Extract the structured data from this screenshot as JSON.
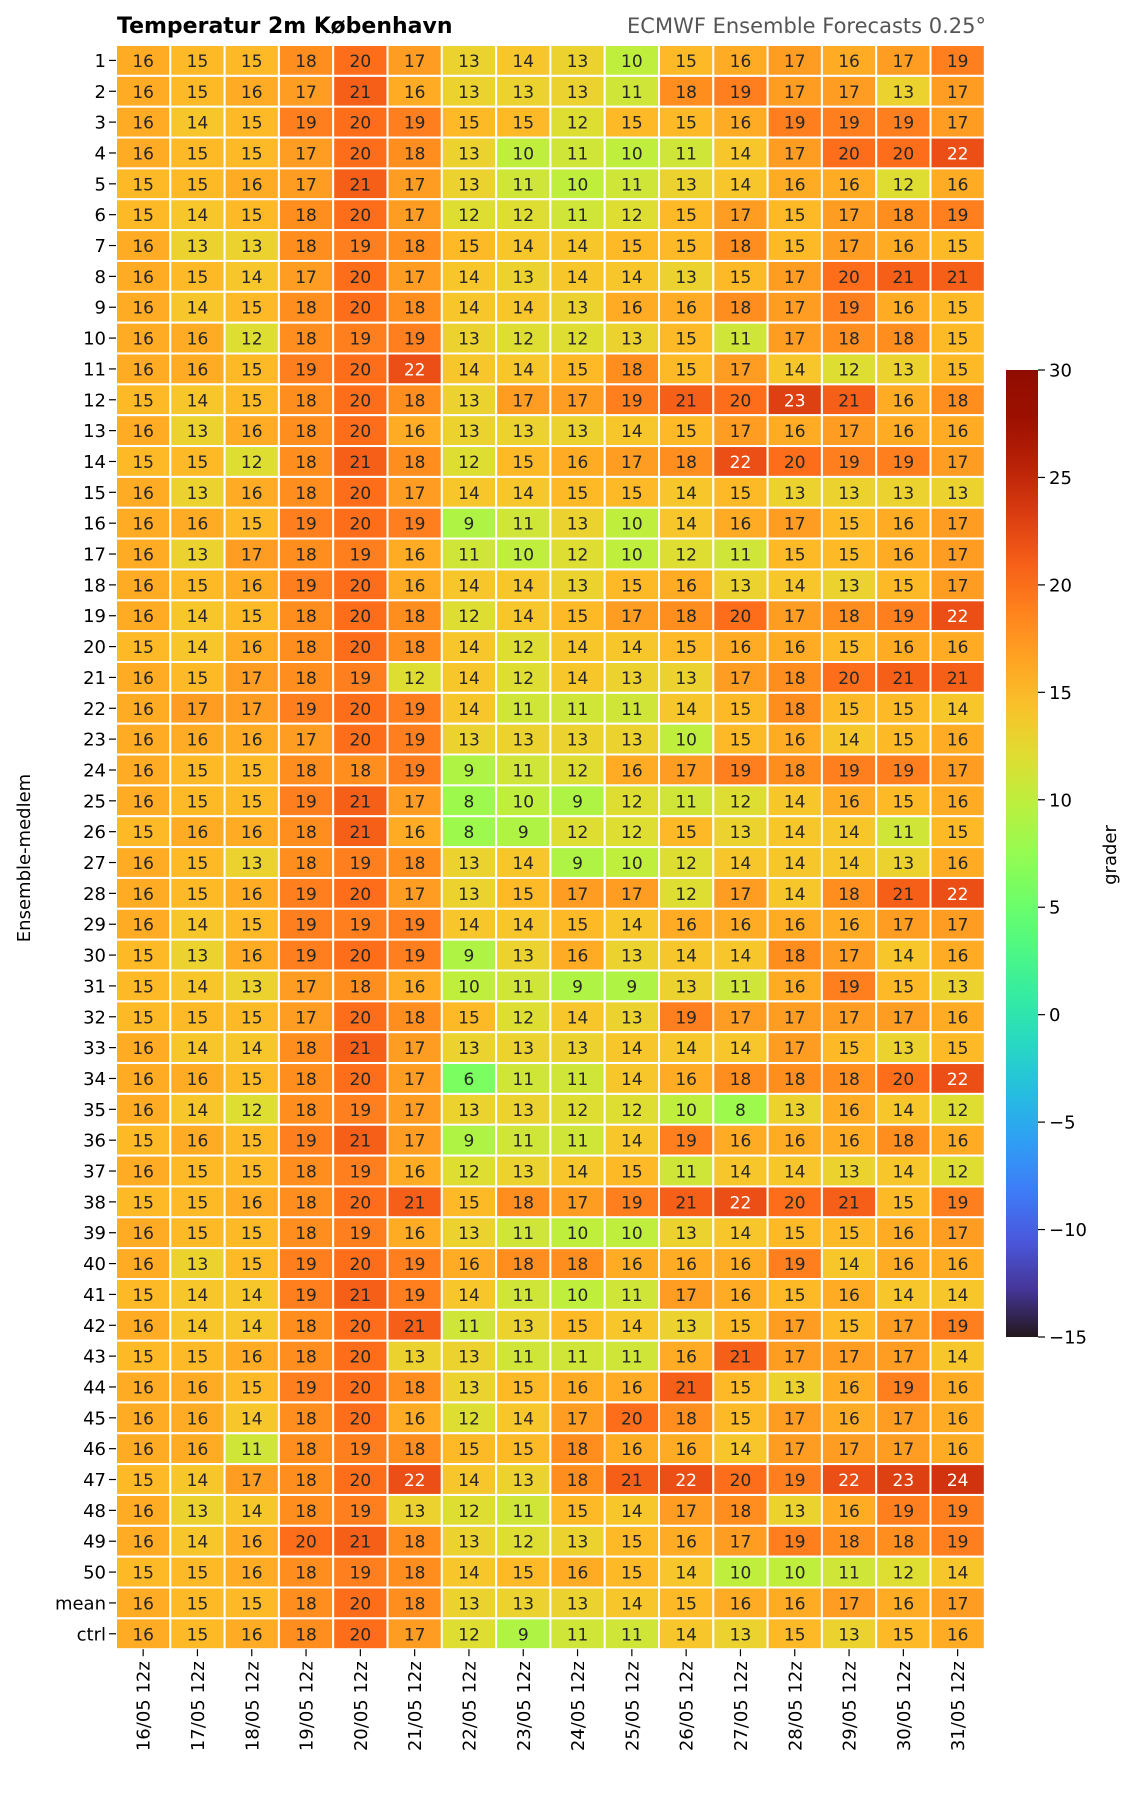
{
  "chart_data": {
    "type": "heatmap",
    "title": "Temperatur 2m København",
    "subtitle": "ECMWF Ensemble Forecasts 0.25°",
    "ylabel": "Ensemble-medlem",
    "colorbar_label": "grader",
    "colorbar_range": [
      -15,
      30
    ],
    "colorbar_ticks": [
      30,
      25,
      20,
      15,
      10,
      5,
      0,
      -5,
      -10,
      -15
    ],
    "colormap": "turbo",
    "columns": [
      "16/05 12z",
      "17/05 12z",
      "18/05 12z",
      "19/05 12z",
      "20/05 12z",
      "21/05 12z",
      "22/05 12z",
      "23/05 12z",
      "24/05 12z",
      "25/05 12z",
      "26/05 12z",
      "27/05 12z",
      "28/05 12z",
      "29/05 12z",
      "30/05 12z",
      "31/05 12z"
    ],
    "rows": [
      "1",
      "2",
      "3",
      "4",
      "5",
      "6",
      "7",
      "8",
      "9",
      "10",
      "11",
      "12",
      "13",
      "14",
      "15",
      "16",
      "17",
      "18",
      "19",
      "20",
      "21",
      "22",
      "23",
      "24",
      "25",
      "26",
      "27",
      "28",
      "29",
      "30",
      "31",
      "32",
      "33",
      "34",
      "35",
      "36",
      "37",
      "38",
      "39",
      "40",
      "41",
      "42",
      "43",
      "44",
      "45",
      "46",
      "47",
      "48",
      "49",
      "50",
      "mean",
      "ctrl"
    ],
    "values": [
      [
        16,
        15,
        15,
        18,
        20,
        17,
        13,
        14,
        13,
        10,
        15,
        16,
        17,
        16,
        17,
        19
      ],
      [
        16,
        15,
        16,
        17,
        21,
        16,
        13,
        13,
        13,
        11,
        18,
        19,
        17,
        17,
        13,
        17
      ],
      [
        16,
        14,
        15,
        19,
        20,
        19,
        15,
        15,
        12,
        15,
        15,
        16,
        19,
        19,
        19,
        17
      ],
      [
        16,
        15,
        15,
        17,
        20,
        18,
        13,
        10,
        11,
        10,
        11,
        14,
        17,
        20,
        20,
        22
      ],
      [
        15,
        15,
        16,
        17,
        21,
        17,
        13,
        11,
        10,
        11,
        13,
        14,
        16,
        16,
        12,
        16
      ],
      [
        15,
        14,
        15,
        18,
        20,
        17,
        12,
        12,
        11,
        12,
        15,
        17,
        15,
        17,
        18,
        19
      ],
      [
        16,
        13,
        13,
        18,
        19,
        18,
        15,
        14,
        14,
        15,
        15,
        18,
        15,
        17,
        16,
        15
      ],
      [
        16,
        15,
        14,
        17,
        20,
        17,
        14,
        13,
        14,
        14,
        13,
        15,
        17,
        20,
        21,
        21
      ],
      [
        16,
        14,
        15,
        18,
        20,
        18,
        14,
        14,
        13,
        16,
        16,
        18,
        17,
        19,
        16,
        15
      ],
      [
        16,
        16,
        12,
        18,
        19,
        19,
        13,
        12,
        12,
        13,
        15,
        11,
        17,
        18,
        18,
        15
      ],
      [
        16,
        16,
        15,
        19,
        20,
        22,
        14,
        14,
        15,
        18,
        15,
        17,
        14,
        12,
        13,
        15
      ],
      [
        15,
        14,
        15,
        18,
        20,
        18,
        13,
        17,
        17,
        19,
        21,
        20,
        23,
        21,
        16,
        18
      ],
      [
        16,
        13,
        16,
        18,
        20,
        16,
        13,
        13,
        13,
        14,
        15,
        17,
        16,
        17,
        16,
        16
      ],
      [
        15,
        15,
        12,
        18,
        21,
        18,
        12,
        15,
        16,
        17,
        18,
        22,
        20,
        19,
        19,
        17
      ],
      [
        16,
        13,
        16,
        18,
        20,
        17,
        14,
        14,
        15,
        15,
        14,
        15,
        13,
        13,
        13,
        13
      ],
      [
        16,
        16,
        15,
        19,
        20,
        19,
        9,
        11,
        13,
        10,
        14,
        16,
        17,
        15,
        16,
        17
      ],
      [
        16,
        13,
        17,
        18,
        19,
        16,
        11,
        10,
        12,
        10,
        12,
        11,
        15,
        15,
        16,
        17
      ],
      [
        16,
        15,
        16,
        19,
        20,
        16,
        14,
        14,
        13,
        15,
        16,
        13,
        14,
        13,
        15,
        17
      ],
      [
        16,
        14,
        15,
        18,
        20,
        18,
        12,
        14,
        15,
        17,
        18,
        20,
        17,
        18,
        19,
        22
      ],
      [
        15,
        14,
        16,
        18,
        20,
        18,
        14,
        12,
        14,
        14,
        15,
        16,
        16,
        15,
        16,
        16
      ],
      [
        16,
        15,
        17,
        18,
        19,
        12,
        14,
        12,
        14,
        13,
        13,
        17,
        18,
        20,
        21,
        21
      ],
      [
        16,
        17,
        17,
        19,
        20,
        19,
        14,
        11,
        11,
        11,
        14,
        15,
        18,
        15,
        15,
        14
      ],
      [
        16,
        16,
        16,
        17,
        20,
        19,
        13,
        13,
        13,
        13,
        10,
        15,
        16,
        14,
        15,
        16
      ],
      [
        16,
        15,
        15,
        18,
        18,
        19,
        9,
        11,
        12,
        16,
        17,
        19,
        18,
        19,
        19,
        17
      ],
      [
        16,
        15,
        15,
        19,
        21,
        17,
        8,
        10,
        9,
        12,
        11,
        12,
        14,
        16,
        15,
        16
      ],
      [
        15,
        16,
        16,
        18,
        21,
        16,
        8,
        9,
        12,
        12,
        15,
        13,
        14,
        14,
        11,
        15
      ],
      [
        16,
        15,
        13,
        18,
        19,
        18,
        13,
        14,
        9,
        10,
        12,
        14,
        14,
        14,
        13,
        16
      ],
      [
        16,
        15,
        16,
        19,
        20,
        17,
        13,
        15,
        17,
        17,
        12,
        17,
        14,
        18,
        21,
        22
      ],
      [
        16,
        14,
        15,
        19,
        19,
        19,
        14,
        14,
        15,
        14,
        16,
        16,
        16,
        16,
        17,
        17
      ],
      [
        15,
        13,
        16,
        19,
        20,
        19,
        9,
        13,
        16,
        13,
        14,
        14,
        18,
        17,
        14,
        16
      ],
      [
        15,
        14,
        13,
        17,
        18,
        16,
        10,
        11,
        9,
        9,
        13,
        11,
        16,
        19,
        15,
        13
      ],
      [
        15,
        15,
        15,
        17,
        20,
        18,
        15,
        12,
        14,
        13,
        19,
        17,
        17,
        17,
        17,
        16
      ],
      [
        16,
        14,
        14,
        18,
        21,
        17,
        13,
        13,
        13,
        14,
        14,
        14,
        17,
        15,
        13,
        15
      ],
      [
        16,
        16,
        15,
        18,
        20,
        17,
        6,
        11,
        11,
        14,
        16,
        18,
        18,
        18,
        20,
        22
      ],
      [
        16,
        14,
        12,
        18,
        19,
        17,
        13,
        13,
        12,
        12,
        10,
        8,
        13,
        16,
        14,
        12
      ],
      [
        15,
        16,
        15,
        19,
        21,
        17,
        9,
        11,
        11,
        14,
        19,
        16,
        16,
        16,
        18,
        16
      ],
      [
        16,
        15,
        15,
        18,
        19,
        16,
        12,
        13,
        14,
        15,
        11,
        14,
        14,
        13,
        14,
        12
      ],
      [
        15,
        15,
        16,
        18,
        20,
        21,
        15,
        18,
        17,
        19,
        21,
        22,
        20,
        21,
        15,
        19
      ],
      [
        16,
        15,
        15,
        18,
        19,
        16,
        13,
        11,
        10,
        10,
        13,
        14,
        15,
        15,
        16,
        17
      ],
      [
        16,
        13,
        15,
        19,
        20,
        19,
        16,
        18,
        18,
        16,
        16,
        16,
        19,
        14,
        16,
        16
      ],
      [
        15,
        14,
        14,
        19,
        21,
        19,
        14,
        11,
        10,
        11,
        17,
        16,
        15,
        16,
        14,
        14
      ],
      [
        16,
        14,
        14,
        18,
        20,
        21,
        11,
        13,
        15,
        14,
        13,
        15,
        17,
        15,
        17,
        19
      ],
      [
        15,
        15,
        16,
        18,
        20,
        13,
        13,
        11,
        11,
        11,
        16,
        21,
        17,
        17,
        17,
        14
      ],
      [
        16,
        16,
        15,
        19,
        20,
        18,
        13,
        15,
        16,
        16,
        21,
        15,
        13,
        16,
        19,
        16
      ],
      [
        16,
        16,
        14,
        18,
        20,
        16,
        12,
        14,
        17,
        20,
        18,
        15,
        17,
        16,
        17,
        16
      ],
      [
        16,
        16,
        11,
        18,
        19,
        18,
        15,
        15,
        18,
        16,
        16,
        14,
        17,
        17,
        17,
        16
      ],
      [
        15,
        14,
        17,
        18,
        20,
        22,
        14,
        13,
        18,
        21,
        22,
        20,
        19,
        22,
        23,
        24
      ],
      [
        16,
        13,
        14,
        18,
        19,
        13,
        12,
        11,
        15,
        14,
        17,
        18,
        13,
        16,
        19,
        19
      ],
      [
        16,
        14,
        16,
        20,
        21,
        18,
        13,
        12,
        13,
        15,
        16,
        17,
        19,
        18,
        18,
        19
      ],
      [
        15,
        15,
        16,
        18,
        19,
        18,
        14,
        15,
        16,
        15,
        14,
        10,
        10,
        11,
        12,
        14
      ],
      [
        16,
        15,
        15,
        18,
        20,
        18,
        13,
        13,
        13,
        14,
        15,
        16,
        16,
        17,
        16,
        17
      ],
      [
        16,
        15,
        16,
        18,
        20,
        17,
        12,
        9,
        11,
        11,
        14,
        13,
        15,
        13,
        15,
        16
      ]
    ]
  }
}
